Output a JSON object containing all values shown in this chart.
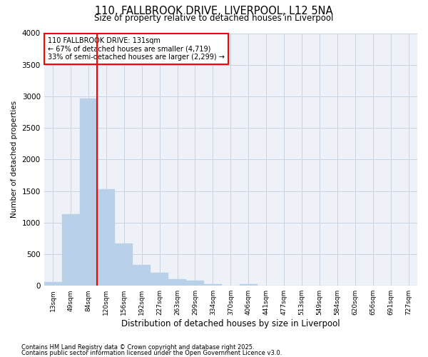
{
  "title_line1": "110, FALLBROOK DRIVE, LIVERPOOL, L12 5NA",
  "title_line2": "Size of property relative to detached houses in Liverpool",
  "xlabel": "Distribution of detached houses by size in Liverpool",
  "ylabel": "Number of detached properties",
  "bar_color": "#b8d0e8",
  "bar_edge_color": "#b8d0e8",
  "vline_color": "red",
  "annotation_title": "110 FALLBROOK DRIVE: 131sqm",
  "annotation_line2": "← 67% of detached houses are smaller (4,719)",
  "annotation_line3": "33% of semi-detached houses are larger (2,299) →",
  "categories": [
    "13sqm",
    "49sqm",
    "84sqm",
    "120sqm",
    "156sqm",
    "192sqm",
    "227sqm",
    "263sqm",
    "299sqm",
    "334sqm",
    "370sqm",
    "406sqm",
    "441sqm",
    "477sqm",
    "513sqm",
    "549sqm",
    "584sqm",
    "620sqm",
    "656sqm",
    "691sqm",
    "727sqm"
  ],
  "values": [
    55,
    1130,
    2960,
    1530,
    665,
    330,
    205,
    100,
    85,
    30,
    0,
    20,
    0,
    0,
    0,
    0,
    0,
    0,
    0,
    0,
    0
  ],
  "ylim": [
    0,
    4000
  ],
  "yticks": [
    0,
    500,
    1000,
    1500,
    2000,
    2500,
    3000,
    3500,
    4000
  ],
  "footnote1": "Contains HM Land Registry data © Crown copyright and database right 2025.",
  "footnote2": "Contains public sector information licensed under the Open Government Licence v3.0.",
  "bg_color": "#eef2f8",
  "grid_color": "#c8d4e0"
}
